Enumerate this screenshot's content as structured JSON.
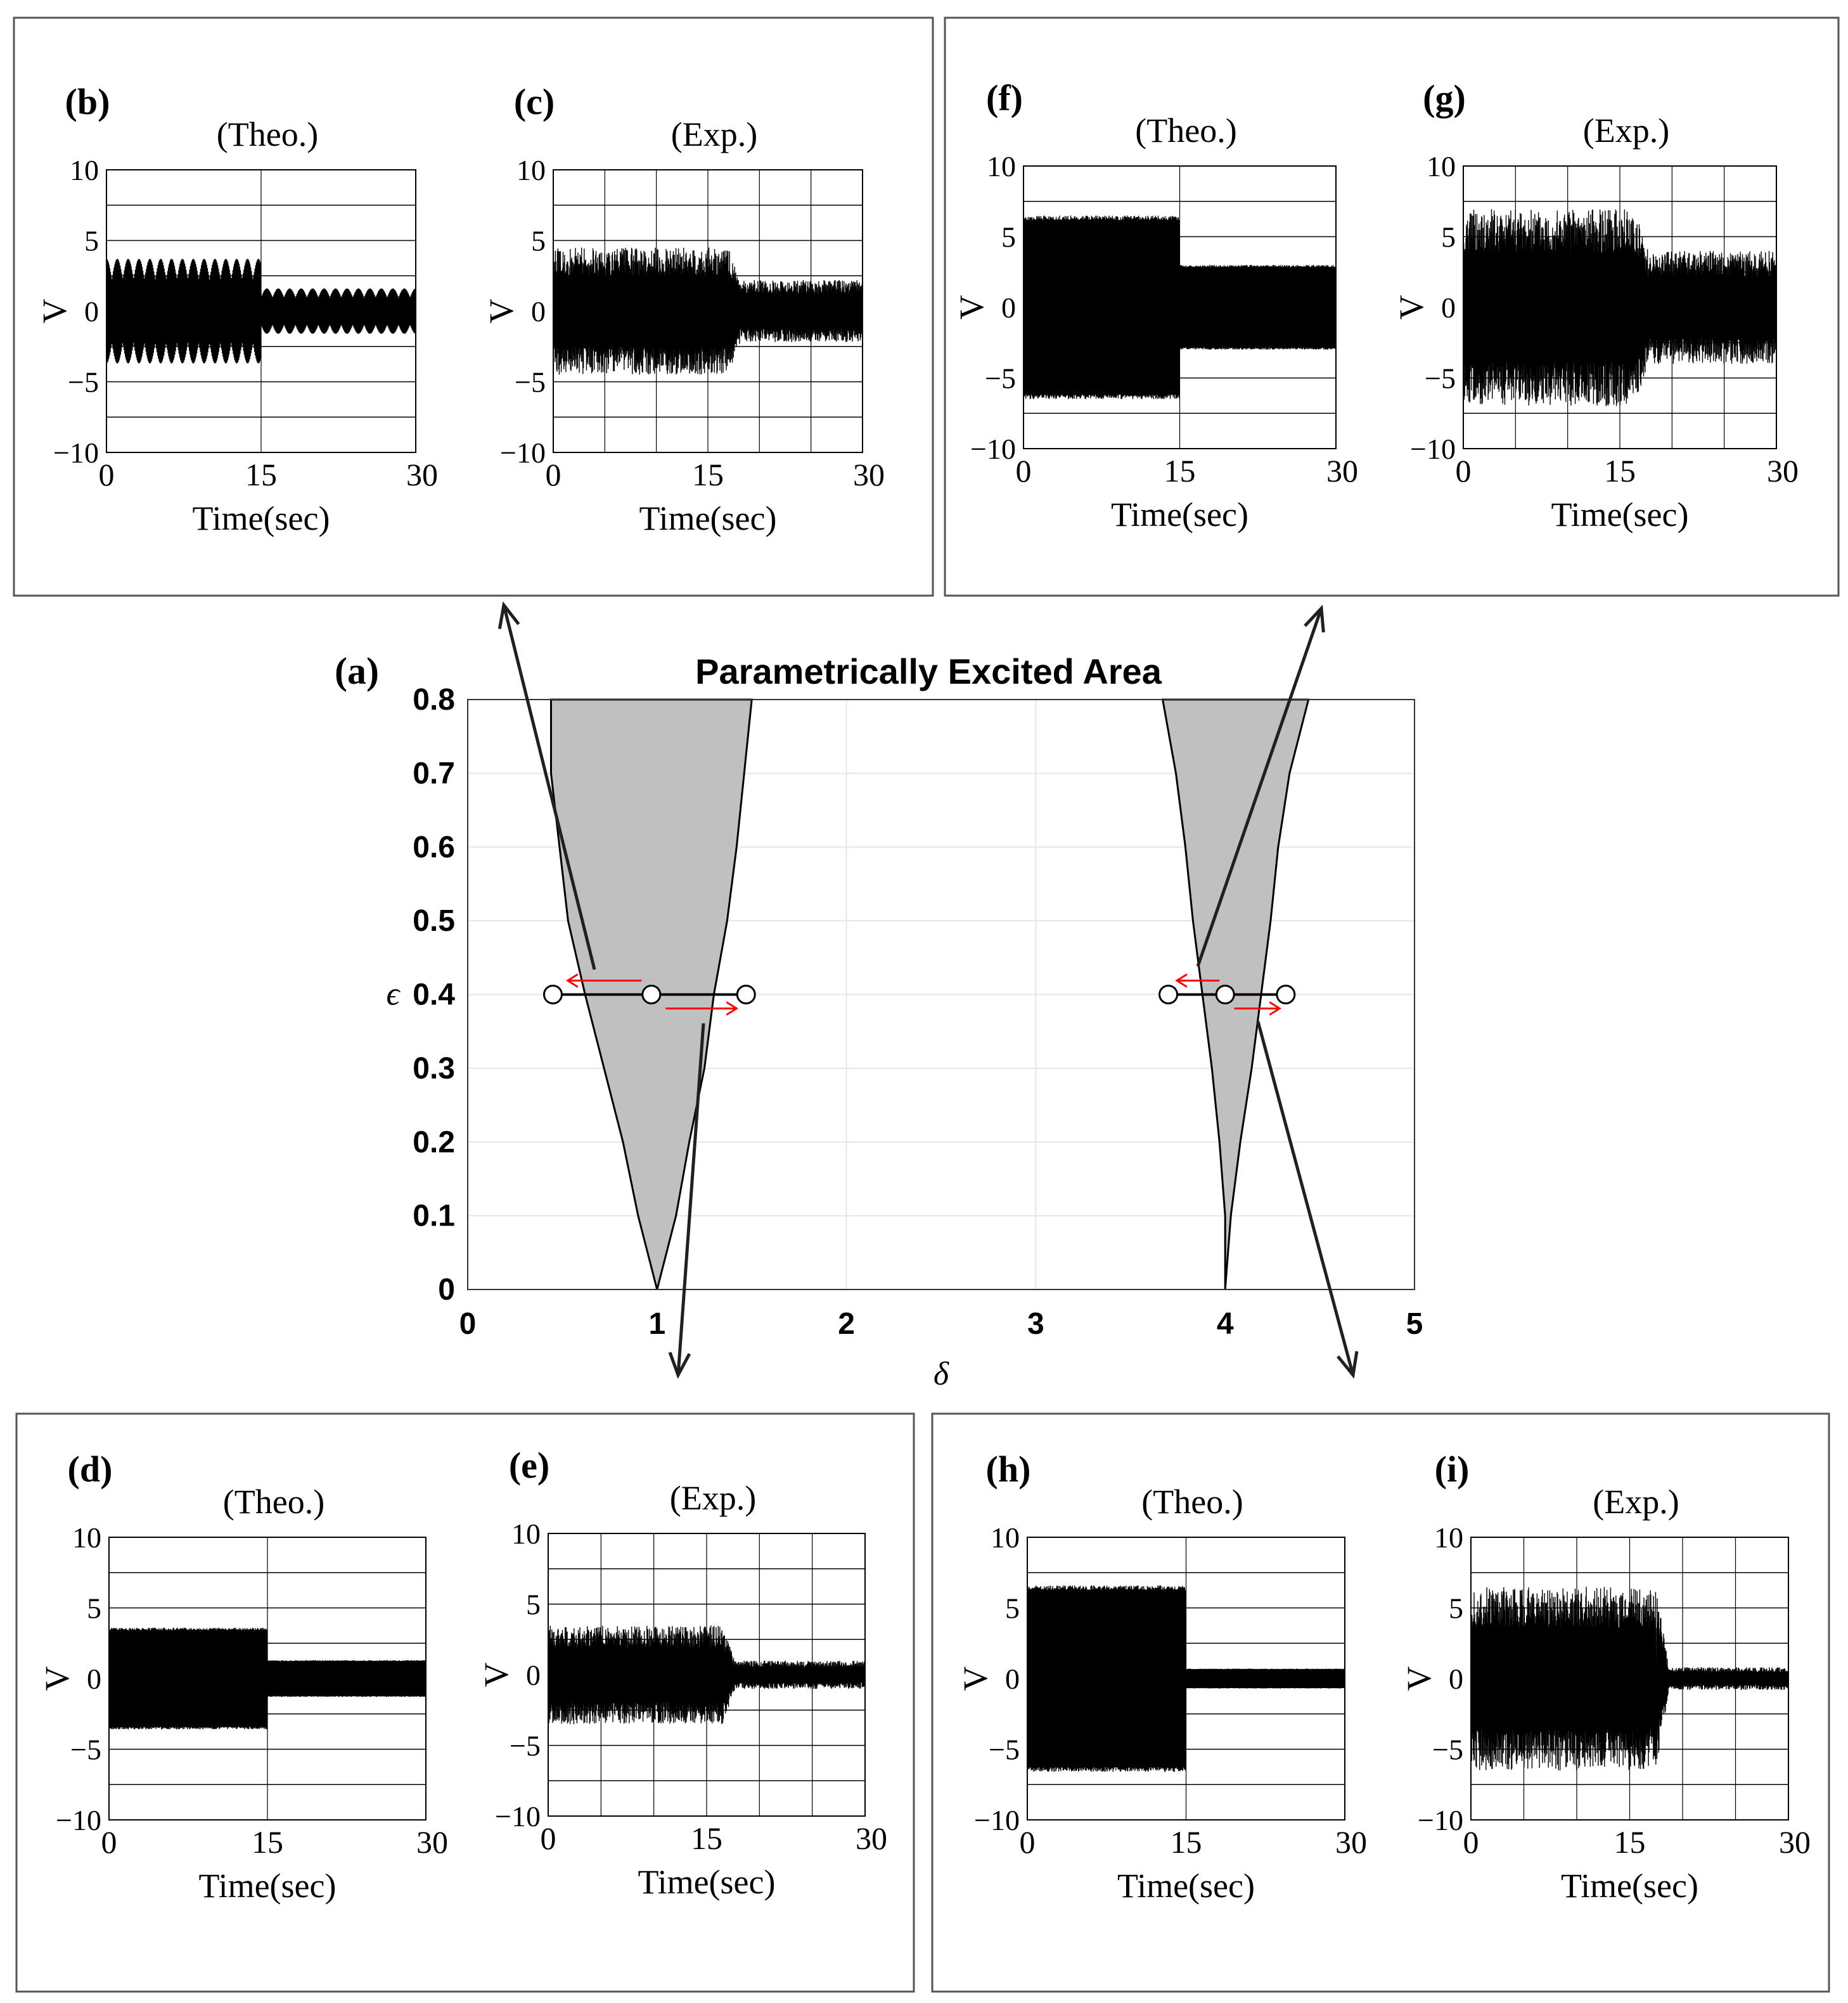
{
  "colors": {
    "region_fill": "#c0c0c0",
    "signal": "#000000",
    "sweep_arrow": "#ff0000",
    "grid_main": "#e6e6e6",
    "grid_small": "#000000"
  },
  "chart_data": [
    {
      "panel": "(a)",
      "type": "area",
      "title": "Parametrically Excited Area",
      "xlabel": "δ",
      "ylabel": "ϵ",
      "xlim": [
        0,
        5
      ],
      "ylim": [
        0,
        0.8
      ],
      "x_ticks": [
        "0",
        "1",
        "2",
        "3",
        "4",
        "5"
      ],
      "y_ticks": [
        "0",
        "0.1",
        "0.2",
        "0.3",
        "0.4",
        "0.5",
        "0.6",
        "0.7",
        "0.8"
      ],
      "grid": true,
      "regions": [
        {
          "left_boundary": [
            [
              1.0,
              0.0
            ],
            [
              0.9,
              0.1
            ],
            [
              0.82,
              0.2
            ],
            [
              0.72,
              0.3
            ],
            [
              0.62,
              0.4
            ],
            [
              0.53,
              0.5
            ],
            [
              0.44,
              0.7
            ],
            [
              0.44,
              0.8
            ]
          ],
          "right_boundary": [
            [
              1.0,
              0.0
            ],
            [
              1.1,
              0.1
            ],
            [
              1.17,
              0.2
            ],
            [
              1.25,
              0.3
            ],
            [
              1.3,
              0.4
            ],
            [
              1.37,
              0.5
            ],
            [
              1.42,
              0.6
            ],
            [
              1.46,
              0.7
            ],
            [
              1.5,
              0.8
            ]
          ]
        },
        {
          "left_boundary": [
            [
              4.0,
              0.0
            ],
            [
              4.0,
              0.1
            ],
            [
              3.97,
              0.2
            ],
            [
              3.93,
              0.3
            ],
            [
              3.88,
              0.4
            ],
            [
              3.83,
              0.5
            ],
            [
              3.79,
              0.6
            ],
            [
              3.74,
              0.7
            ],
            [
              3.67,
              0.8
            ]
          ],
          "right_boundary": [
            [
              4.0,
              0.0
            ],
            [
              4.03,
              0.1
            ],
            [
              4.08,
              0.2
            ],
            [
              4.14,
              0.3
            ],
            [
              4.19,
              0.4
            ],
            [
              4.24,
              0.5
            ],
            [
              4.28,
              0.6
            ],
            [
              4.34,
              0.7
            ],
            [
              4.44,
              0.8
            ]
          ]
        }
      ],
      "sweeps": [
        {
          "epsilon": 0.4,
          "delta_points": [
            0.45,
            0.97,
            1.47
          ]
        },
        {
          "epsilon": 0.4,
          "delta_points": [
            3.7,
            4.0,
            4.32
          ]
        }
      ]
    },
    {
      "panel": "(b)",
      "subtitle": "(Theo.)",
      "type": "line",
      "xlabel": "Time(sec)",
      "ylabel": "V",
      "xlim": [
        0,
        30
      ],
      "ylim": [
        -10,
        10
      ],
      "x_ticks": [
        "0",
        "15",
        "30"
      ],
      "y_ticks": [
        "10",
        "5",
        "0",
        "−5",
        "−10"
      ],
      "amplitude_before": 3.7,
      "amplitude_after": 1.6,
      "switch_time": 15
    },
    {
      "panel": "(c)",
      "subtitle": "(Exp.)",
      "type": "line",
      "xlabel": "Time(sec)",
      "ylabel": "V",
      "xlim": [
        0,
        30
      ],
      "ylim": [
        -10,
        10
      ],
      "x_ticks": [
        "0",
        "15",
        "30"
      ],
      "y_ticks": [
        "10",
        "5",
        "0",
        "−5",
        "−10"
      ],
      "amplitude_before": 4.5,
      "amplitude_after": 2.2,
      "switch_time": 17
    },
    {
      "panel": "(d)",
      "subtitle": "(Theo.)",
      "type": "line",
      "xlabel": "Time(sec)",
      "ylabel": "V",
      "xlim": [
        0,
        30
      ],
      "ylim": [
        -10,
        10
      ],
      "x_ticks": [
        "0",
        "15",
        "30"
      ],
      "y_ticks": [
        "10",
        "5",
        "0",
        "−5",
        "−10"
      ],
      "amplitude_before": 3.6,
      "amplitude_after": 1.3,
      "switch_time": 15
    },
    {
      "panel": "(e)",
      "subtitle": "(Exp.)",
      "type": "line",
      "xlabel": "Time(sec)",
      "ylabel": "V",
      "xlim": [
        0,
        30
      ],
      "ylim": [
        -10,
        10
      ],
      "x_ticks": [
        "0",
        "15",
        "30"
      ],
      "y_ticks": [
        "10",
        "5",
        "0",
        "−5",
        "−10"
      ],
      "amplitude_before": 3.5,
      "amplitude_after": 1.0,
      "switch_time": 16.5
    },
    {
      "panel": "(f)",
      "subtitle": "(Theo.)",
      "type": "line",
      "xlabel": "Time(sec)",
      "ylabel": "V",
      "xlim": [
        0,
        30
      ],
      "ylim": [
        -10,
        10
      ],
      "x_ticks": [
        "0",
        "15",
        "30"
      ],
      "y_ticks": [
        "10",
        "5",
        "0",
        "−5",
        "−10"
      ],
      "amplitude_before": 6.5,
      "amplitude_after": 3.0,
      "switch_time": 15
    },
    {
      "panel": "(g)",
      "subtitle": "(Exp.)",
      "type": "line",
      "xlabel": "Time(sec)",
      "ylabel": "V",
      "xlim": [
        0,
        30
      ],
      "ylim": [
        -10,
        10
      ],
      "x_ticks": [
        "0",
        "15",
        "30"
      ],
      "y_ticks": [
        "10",
        "5",
        "0",
        "−5",
        "−10"
      ],
      "amplitude_before": 7.0,
      "amplitude_after": 4.0,
      "switch_time": 16.5
    },
    {
      "panel": "(h)",
      "subtitle": "(Theo.)",
      "type": "line",
      "xlabel": "Time(sec)",
      "ylabel": "V",
      "xlim": [
        0,
        30
      ],
      "ylim": [
        -10,
        10
      ],
      "x_ticks": [
        "0",
        "15",
        "30"
      ],
      "y_ticks": [
        "10",
        "5",
        "0",
        "−5",
        "−10"
      ],
      "amplitude_before": 6.6,
      "amplitude_after": 0.7,
      "switch_time": 15
    },
    {
      "panel": "(i)",
      "subtitle": "(Exp.)",
      "type": "line",
      "xlabel": "Time(sec)",
      "ylabel": "V",
      "xlim": [
        0,
        30
      ],
      "ylim": [
        -10,
        10
      ],
      "x_ticks": [
        "0",
        "15",
        "30"
      ],
      "y_ticks": [
        "10",
        "5",
        "0",
        "−5",
        "−10"
      ],
      "amplitude_before": 6.5,
      "amplitude_after": 0.8,
      "switch_time": 17.5
    }
  ]
}
